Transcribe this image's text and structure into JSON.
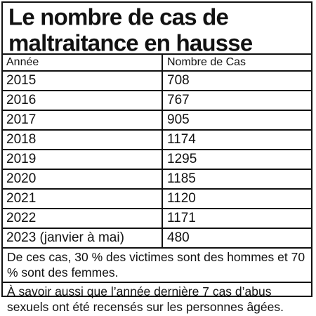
{
  "title_line1": "Le nombre de cas de",
  "title_line2": "maltraitance en hausse",
  "chart_data": {
    "type": "table",
    "title": "Le nombre de cas de maltraitance en hausse",
    "columns": [
      "Année",
      "Nombre de Cas"
    ],
    "rows": [
      [
        "2015",
        "708"
      ],
      [
        "2016",
        "767"
      ],
      [
        "2017",
        "905"
      ],
      [
        "2018",
        "1174"
      ],
      [
        "2019",
        "1295"
      ],
      [
        "2020",
        "1185"
      ],
      [
        "2021",
        "1120"
      ],
      [
        "2022",
        "1171"
      ],
      [
        "2023 (janvier à mai)",
        "480"
      ]
    ]
  },
  "notes": [
    "De ces cas, 30 % des victimes sont des hommes et 70 % sont des femmes.",
    "À savoir aussi que l’année dernière 7 cas d’abus sexuels ont été recensés sur les personnes âgées."
  ]
}
